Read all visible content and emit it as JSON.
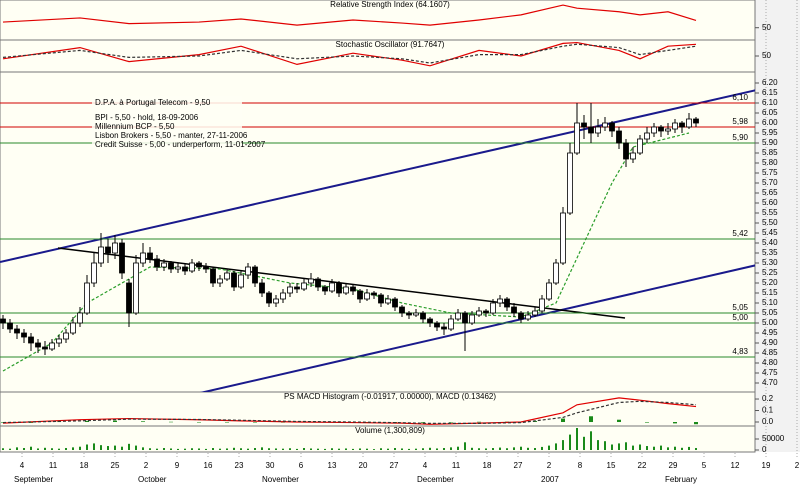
{
  "chart_data": [
    {
      "type": "line",
      "title": "Relative Strength Index (64.1607)",
      "ylim": [
        30,
        100
      ],
      "yticks": [
        50
      ],
      "series": [
        {
          "color": "#e00000",
          "x": [
            0,
            11,
            18,
            28,
            34,
            42,
            50,
            57,
            61,
            68,
            74,
            80,
            82,
            88,
            91,
            95,
            99
          ],
          "values": [
            61,
            69,
            58,
            61,
            67,
            55,
            65,
            59,
            55,
            65,
            75,
            94,
            88,
            81,
            75,
            81,
            64.1607
          ]
        }
      ]
    },
    {
      "type": "line",
      "title": "Stochastic Oscillator (91.7647)",
      "ylim": [
        0,
        100
      ],
      "yticks": [
        50
      ],
      "series": [
        {
          "color": "#e00000",
          "x": [
            0,
            11,
            18,
            28,
            34,
            42,
            50,
            57,
            61,
            68,
            74,
            80,
            82,
            88,
            91,
            95,
            99
          ],
          "values": [
            40,
            80,
            30,
            55,
            85,
            20,
            60,
            35,
            15,
            70,
            50,
            95,
            98,
            70,
            40,
            85,
            91.7647
          ]
        },
        {
          "color": "#333333",
          "dashed": true,
          "x": [
            0,
            11,
            18,
            28,
            34,
            42,
            50,
            57,
            61,
            68,
            74,
            80,
            82,
            88,
            91,
            95,
            99
          ],
          "values": [
            45,
            70,
            45,
            50,
            70,
            40,
            50,
            40,
            25,
            55,
            55,
            85,
            92,
            80,
            55,
            70,
            85
          ]
        }
      ]
    },
    {
      "type": "candlestick",
      "ylim": [
        4.665,
        6.245
      ],
      "grid": true,
      "yticks": [
        {
          "value": 6.2,
          "label": "6.20"
        },
        6.15,
        {
          "value": 6.1,
          "label": "6.10"
        },
        6.05,
        {
          "value": 6.0,
          "label": "6.00"
        },
        5.95,
        {
          "value": 5.9,
          "label": "5.90"
        },
        5.85,
        {
          "value": 5.8,
          "label": "5.80"
        },
        5.75,
        {
          "value": 5.7,
          "label": "5.70"
        },
        5.65,
        {
          "value": 5.6,
          "label": "5.60"
        },
        5.55,
        {
          "value": 5.5,
          "label": "5.50"
        },
        5.45,
        {
          "value": 5.4,
          "label": "5.40"
        },
        5.35,
        {
          "value": 5.3,
          "label": "5.30"
        },
        5.25,
        {
          "value": 5.2,
          "label": "5.20"
        },
        5.15,
        {
          "value": 5.1,
          "label": "5.10"
        },
        5.05,
        {
          "value": 5.0,
          "label": "5.00"
        },
        4.95,
        {
          "value": 4.9,
          "label": "4.90"
        },
        4.85,
        {
          "value": 4.8,
          "label": "4.80"
        },
        4.75,
        {
          "value": 4.7,
          "label": "4.70"
        }
      ],
      "levels": [
        {
          "value": 6.1,
          "label": "6,10",
          "color": "#d00000"
        },
        {
          "value": 5.98,
          "label": "5,98",
          "color": "#d00000"
        },
        {
          "value": 5.9,
          "label": "5,90",
          "color": "#2a8a2a"
        },
        {
          "value": 5.42,
          "label": "5,42",
          "color": "#2a8a2a"
        },
        {
          "value": 5.05,
          "label": "5,05",
          "color": "#2a8a2a"
        },
        {
          "value": 5.0,
          "label": "5,00",
          "color": "#2a8a2a"
        },
        {
          "value": 4.83,
          "label": "4,83",
          "color": "#2a8a2a"
        }
      ],
      "annotation": [
        "D.P.A. à Portugal Telecom - 9,50",
        "BPI - 5,50 - hold, 18-09-2006",
        "Millennium BCP - 5,50",
        "Lisbon Brokers - 5,50 - manter, 27-11-2006",
        "Credit Suisse - 5,00 - underperform, 11-01-2007"
      ],
      "moving_average": {
        "color": "#2a9d2a",
        "x": [
          0,
          7,
          12,
          21,
          31,
          41,
          50,
          57,
          64,
          74,
          79,
          83,
          87,
          90,
          98
        ],
        "values": [
          4.76,
          4.9,
          5.1,
          5.28,
          5.27,
          5.2,
          5.17,
          5.1,
          5.05,
          5.03,
          5.1,
          5.4,
          5.7,
          5.88,
          5.95
        ]
      },
      "ohlc": [
        [
          5.02,
          5.04,
          4.97,
          5.0
        ],
        [
          5.0,
          5.02,
          4.95,
          4.97
        ],
        [
          4.97,
          4.99,
          4.92,
          4.95
        ],
        [
          4.95,
          4.97,
          4.9,
          4.93
        ],
        [
          4.93,
          4.95,
          4.86,
          4.9
        ],
        [
          4.9,
          4.92,
          4.85,
          4.88
        ],
        [
          4.88,
          4.91,
          4.84,
          4.87
        ],
        [
          4.87,
          4.92,
          4.86,
          4.9
        ],
        [
          4.9,
          4.94,
          4.88,
          4.92
        ],
        [
          4.92,
          4.97,
          4.9,
          4.95
        ],
        [
          4.95,
          5.03,
          4.94,
          5.0
        ],
        [
          5.0,
          5.08,
          4.98,
          5.05
        ],
        [
          5.05,
          5.24,
          5.04,
          5.2
        ],
        [
          5.2,
          5.35,
          5.18,
          5.3
        ],
        [
          5.3,
          5.45,
          5.28,
          5.38
        ],
        [
          5.38,
          5.42,
          5.3,
          5.35
        ],
        [
          5.35,
          5.44,
          5.32,
          5.4
        ],
        [
          5.4,
          5.42,
          5.22,
          5.25
        ],
        [
          5.2,
          5.22,
          4.98,
          5.05
        ],
        [
          5.05,
          5.34,
          5.04,
          5.3
        ],
        [
          5.3,
          5.4,
          5.28,
          5.35
        ],
        [
          5.35,
          5.38,
          5.3,
          5.32
        ],
        [
          5.32,
          5.34,
          5.26,
          5.28
        ],
        [
          5.28,
          5.32,
          5.26,
          5.3
        ],
        [
          5.3,
          5.31,
          5.25,
          5.27
        ],
        [
          5.27,
          5.3,
          5.25,
          5.28
        ],
        [
          5.28,
          5.3,
          5.24,
          5.26
        ],
        [
          5.26,
          5.32,
          5.25,
          5.3
        ],
        [
          5.3,
          5.31,
          5.26,
          5.28
        ],
        [
          5.28,
          5.3,
          5.25,
          5.27
        ],
        [
          5.27,
          5.28,
          5.18,
          5.2
        ],
        [
          5.2,
          5.24,
          5.18,
          5.22
        ],
        [
          5.22,
          5.27,
          5.21,
          5.25
        ],
        [
          5.25,
          5.26,
          5.16,
          5.18
        ],
        [
          5.18,
          5.26,
          5.17,
          5.24
        ],
        [
          5.24,
          5.3,
          5.22,
          5.28
        ],
        [
          5.28,
          5.29,
          5.18,
          5.2
        ],
        [
          5.2,
          5.22,
          5.13,
          5.15
        ],
        [
          5.15,
          5.16,
          5.08,
          5.1
        ],
        [
          5.1,
          5.14,
          5.08,
          5.12
        ],
        [
          5.12,
          5.17,
          5.1,
          5.15
        ],
        [
          5.15,
          5.2,
          5.13,
          5.18
        ],
        [
          5.18,
          5.2,
          5.15,
          5.17
        ],
        [
          5.17,
          5.22,
          5.16,
          5.2
        ],
        [
          5.2,
          5.25,
          5.18,
          5.22
        ],
        [
          5.22,
          5.23,
          5.16,
          5.18
        ],
        [
          5.18,
          5.19,
          5.14,
          5.16
        ],
        [
          5.16,
          5.22,
          5.15,
          5.2
        ],
        [
          5.2,
          5.21,
          5.13,
          5.15
        ],
        [
          5.15,
          5.2,
          5.14,
          5.18
        ],
        [
          5.18,
          5.19,
          5.14,
          5.16
        ],
        [
          5.16,
          5.17,
          5.1,
          5.12
        ],
        [
          5.12,
          5.17,
          5.11,
          5.15
        ],
        [
          5.15,
          5.16,
          5.12,
          5.14
        ],
        [
          5.14,
          5.15,
          5.08,
          5.1
        ],
        [
          5.1,
          5.14,
          5.09,
          5.12
        ],
        [
          5.12,
          5.13,
          5.06,
          5.08
        ],
        [
          5.08,
          5.09,
          5.03,
          5.05
        ],
        [
          5.05,
          5.06,
          5.02,
          5.04
        ],
        [
          5.04,
          5.07,
          5.03,
          5.05
        ],
        [
          5.05,
          5.06,
          5.0,
          5.02
        ],
        [
          5.02,
          5.03,
          4.98,
          5.0
        ],
        [
          5.0,
          5.01,
          4.96,
          4.98
        ],
        [
          4.98,
          5.0,
          4.94,
          4.97
        ],
        [
          4.97,
          5.04,
          4.96,
          5.02
        ],
        [
          5.02,
          5.07,
          5.01,
          5.05
        ],
        [
          5.05,
          5.06,
          4.86,
          5.0
        ],
        [
          5.0,
          5.06,
          4.99,
          5.04
        ],
        [
          5.04,
          5.08,
          5.03,
          5.06
        ],
        [
          5.06,
          5.07,
          5.03,
          5.05
        ],
        [
          5.05,
          5.12,
          5.04,
          5.1
        ],
        [
          5.1,
          5.14,
          5.08,
          5.12
        ],
        [
          5.12,
          5.13,
          5.06,
          5.08
        ],
        [
          5.08,
          5.1,
          5.03,
          5.05
        ],
        [
          5.05,
          5.06,
          5.0,
          5.02
        ],
        [
          5.02,
          5.06,
          5.01,
          5.04
        ],
        [
          5.04,
          5.08,
          5.03,
          5.06
        ],
        [
          5.06,
          5.14,
          5.05,
          5.12
        ],
        [
          5.12,
          5.22,
          5.11,
          5.2
        ],
        [
          5.2,
          5.32,
          5.19,
          5.3
        ],
        [
          5.3,
          5.58,
          5.29,
          5.55
        ],
        [
          5.55,
          5.9,
          5.54,
          5.85
        ],
        [
          5.85,
          6.1,
          5.84,
          6.0
        ],
        [
          6.0,
          6.04,
          5.92,
          5.98
        ],
        [
          5.98,
          6.1,
          5.9,
          5.95
        ],
        [
          5.95,
          6.02,
          5.93,
          5.98
        ],
        [
          5.98,
          6.03,
          5.96,
          6.0
        ],
        [
          6.0,
          6.01,
          5.93,
          5.96
        ],
        [
          5.96,
          5.98,
          5.87,
          5.9
        ],
        [
          5.9,
          5.92,
          5.78,
          5.82
        ],
        [
          5.82,
          5.88,
          5.8,
          5.85
        ],
        [
          5.85,
          5.94,
          5.84,
          5.92
        ],
        [
          5.92,
          5.98,
          5.9,
          5.95
        ],
        [
          5.95,
          6.0,
          5.93,
          5.98
        ],
        [
          5.98,
          5.99,
          5.93,
          5.96
        ],
        [
          5.96,
          6.0,
          5.94,
          5.97
        ],
        [
          5.97,
          6.02,
          5.95,
          6.0
        ],
        [
          6.0,
          6.01,
          5.95,
          5.98
        ],
        [
          5.98,
          6.05,
          5.97,
          6.02
        ],
        [
          6.02,
          6.03,
          5.98,
          6.0
        ]
      ]
    },
    {
      "type": "macd",
      "title": "PS MACD Histogram (-0.01917, 0.00000), MACD (0.13462)",
      "ylim": [
        -0.026,
        0.235
      ],
      "yticks": [
        0.2,
        0.1,
        {
          "value": 0,
          "label": "0.0"
        }
      ],
      "histogram": {
        "color": "#1a8a1a",
        "x": [
          0,
          4,
          8,
          12,
          16,
          20,
          24,
          28,
          32,
          36,
          40,
          44,
          48,
          52,
          56,
          60,
          64,
          68,
          72,
          76,
          80,
          84,
          88,
          92,
          96,
          99
        ],
        "values": [
          -0.005,
          -0.008,
          0.004,
          0.01,
          0.012,
          0.006,
          0.002,
          -0.002,
          -0.003,
          -0.004,
          -0.005,
          -0.002,
          0.001,
          -0.002,
          -0.004,
          -0.006,
          -0.003,
          0.002,
          0.003,
          0.008,
          0.03,
          0.05,
          0.02,
          -0.005,
          -0.012,
          -0.01917
        ]
      },
      "series": [
        {
          "color": "#e00000",
          "x": [
            0,
            11,
            18,
            28,
            34,
            42,
            50,
            57,
            61,
            68,
            74,
            80,
            82,
            88,
            91,
            95,
            99
          ],
          "values": [
            -0.01,
            0.02,
            0.03,
            0.02,
            0.01,
            0,
            -0.005,
            -0.01,
            -0.02,
            -0.01,
            0,
            0.08,
            0.15,
            0.21,
            0.19,
            0.16,
            0.13462
          ]
        },
        {
          "color": "#333333",
          "dashed": true,
          "x": [
            0,
            11,
            18,
            28,
            34,
            42,
            50,
            57,
            61,
            68,
            74,
            80,
            82,
            88,
            91,
            95,
            99
          ],
          "values": [
            -0.005,
            0.01,
            0.025,
            0.022,
            0.015,
            0.005,
            0,
            -0.006,
            -0.012,
            -0.012,
            -0.005,
            0.04,
            0.08,
            0.17,
            0.18,
            0.17,
            0.15
          ]
        }
      ]
    },
    {
      "type": "bar",
      "title": "Volume (1,300,809)",
      "ylim": [
        0,
        100000
      ],
      "yticks": [
        50000,
        0
      ],
      "color": "#1a8a1a",
      "values": [
        8000,
        6000,
        12000,
        9000,
        15000,
        7000,
        10000,
        8000,
        6000,
        9000,
        12000,
        15000,
        25000,
        30000,
        22000,
        18000,
        20000,
        15000,
        28000,
        20000,
        12000,
        8000,
        6000,
        9000,
        7000,
        5000,
        6000,
        8000,
        7000,
        5000,
        9000,
        6000,
        7000,
        10000,
        8000,
        6000,
        9000,
        12000,
        8000,
        7000,
        6000,
        8000,
        5000,
        9000,
        7000,
        6000,
        5000,
        8000,
        6000,
        7000,
        5000,
        7000,
        6000,
        4000,
        8000,
        6000,
        9000,
        7000,
        5000,
        6000,
        8000,
        10000,
        7000,
        9000,
        12000,
        15000,
        35000,
        10000,
        8000,
        7000,
        9000,
        11000,
        8000,
        12000,
        15000,
        10000,
        9000,
        14000,
        20000,
        30000,
        45000,
        70000,
        100000,
        60000,
        85000,
        45000,
        40000,
        25000,
        30000,
        35000,
        20000,
        25000,
        18000,
        15000,
        20000,
        12000,
        15000,
        10000,
        14000,
        9000
      ],
      "xtick_labels": [
        "4",
        "11",
        "18",
        "25",
        "2",
        "9",
        "16",
        "23",
        "30",
        "6",
        "13",
        "20",
        "27",
        "4",
        "11",
        "18",
        "27",
        "2",
        "8",
        "15",
        "22",
        "29",
        "5",
        "12",
        "19",
        "2"
      ],
      "month_labels": [
        "September",
        null,
        null,
        null,
        "October",
        null,
        null,
        null,
        "November",
        null,
        null,
        null,
        null,
        "December",
        null,
        null,
        null,
        "2007",
        null,
        null,
        null,
        "February",
        null,
        null,
        null,
        null
      ]
    }
  ]
}
